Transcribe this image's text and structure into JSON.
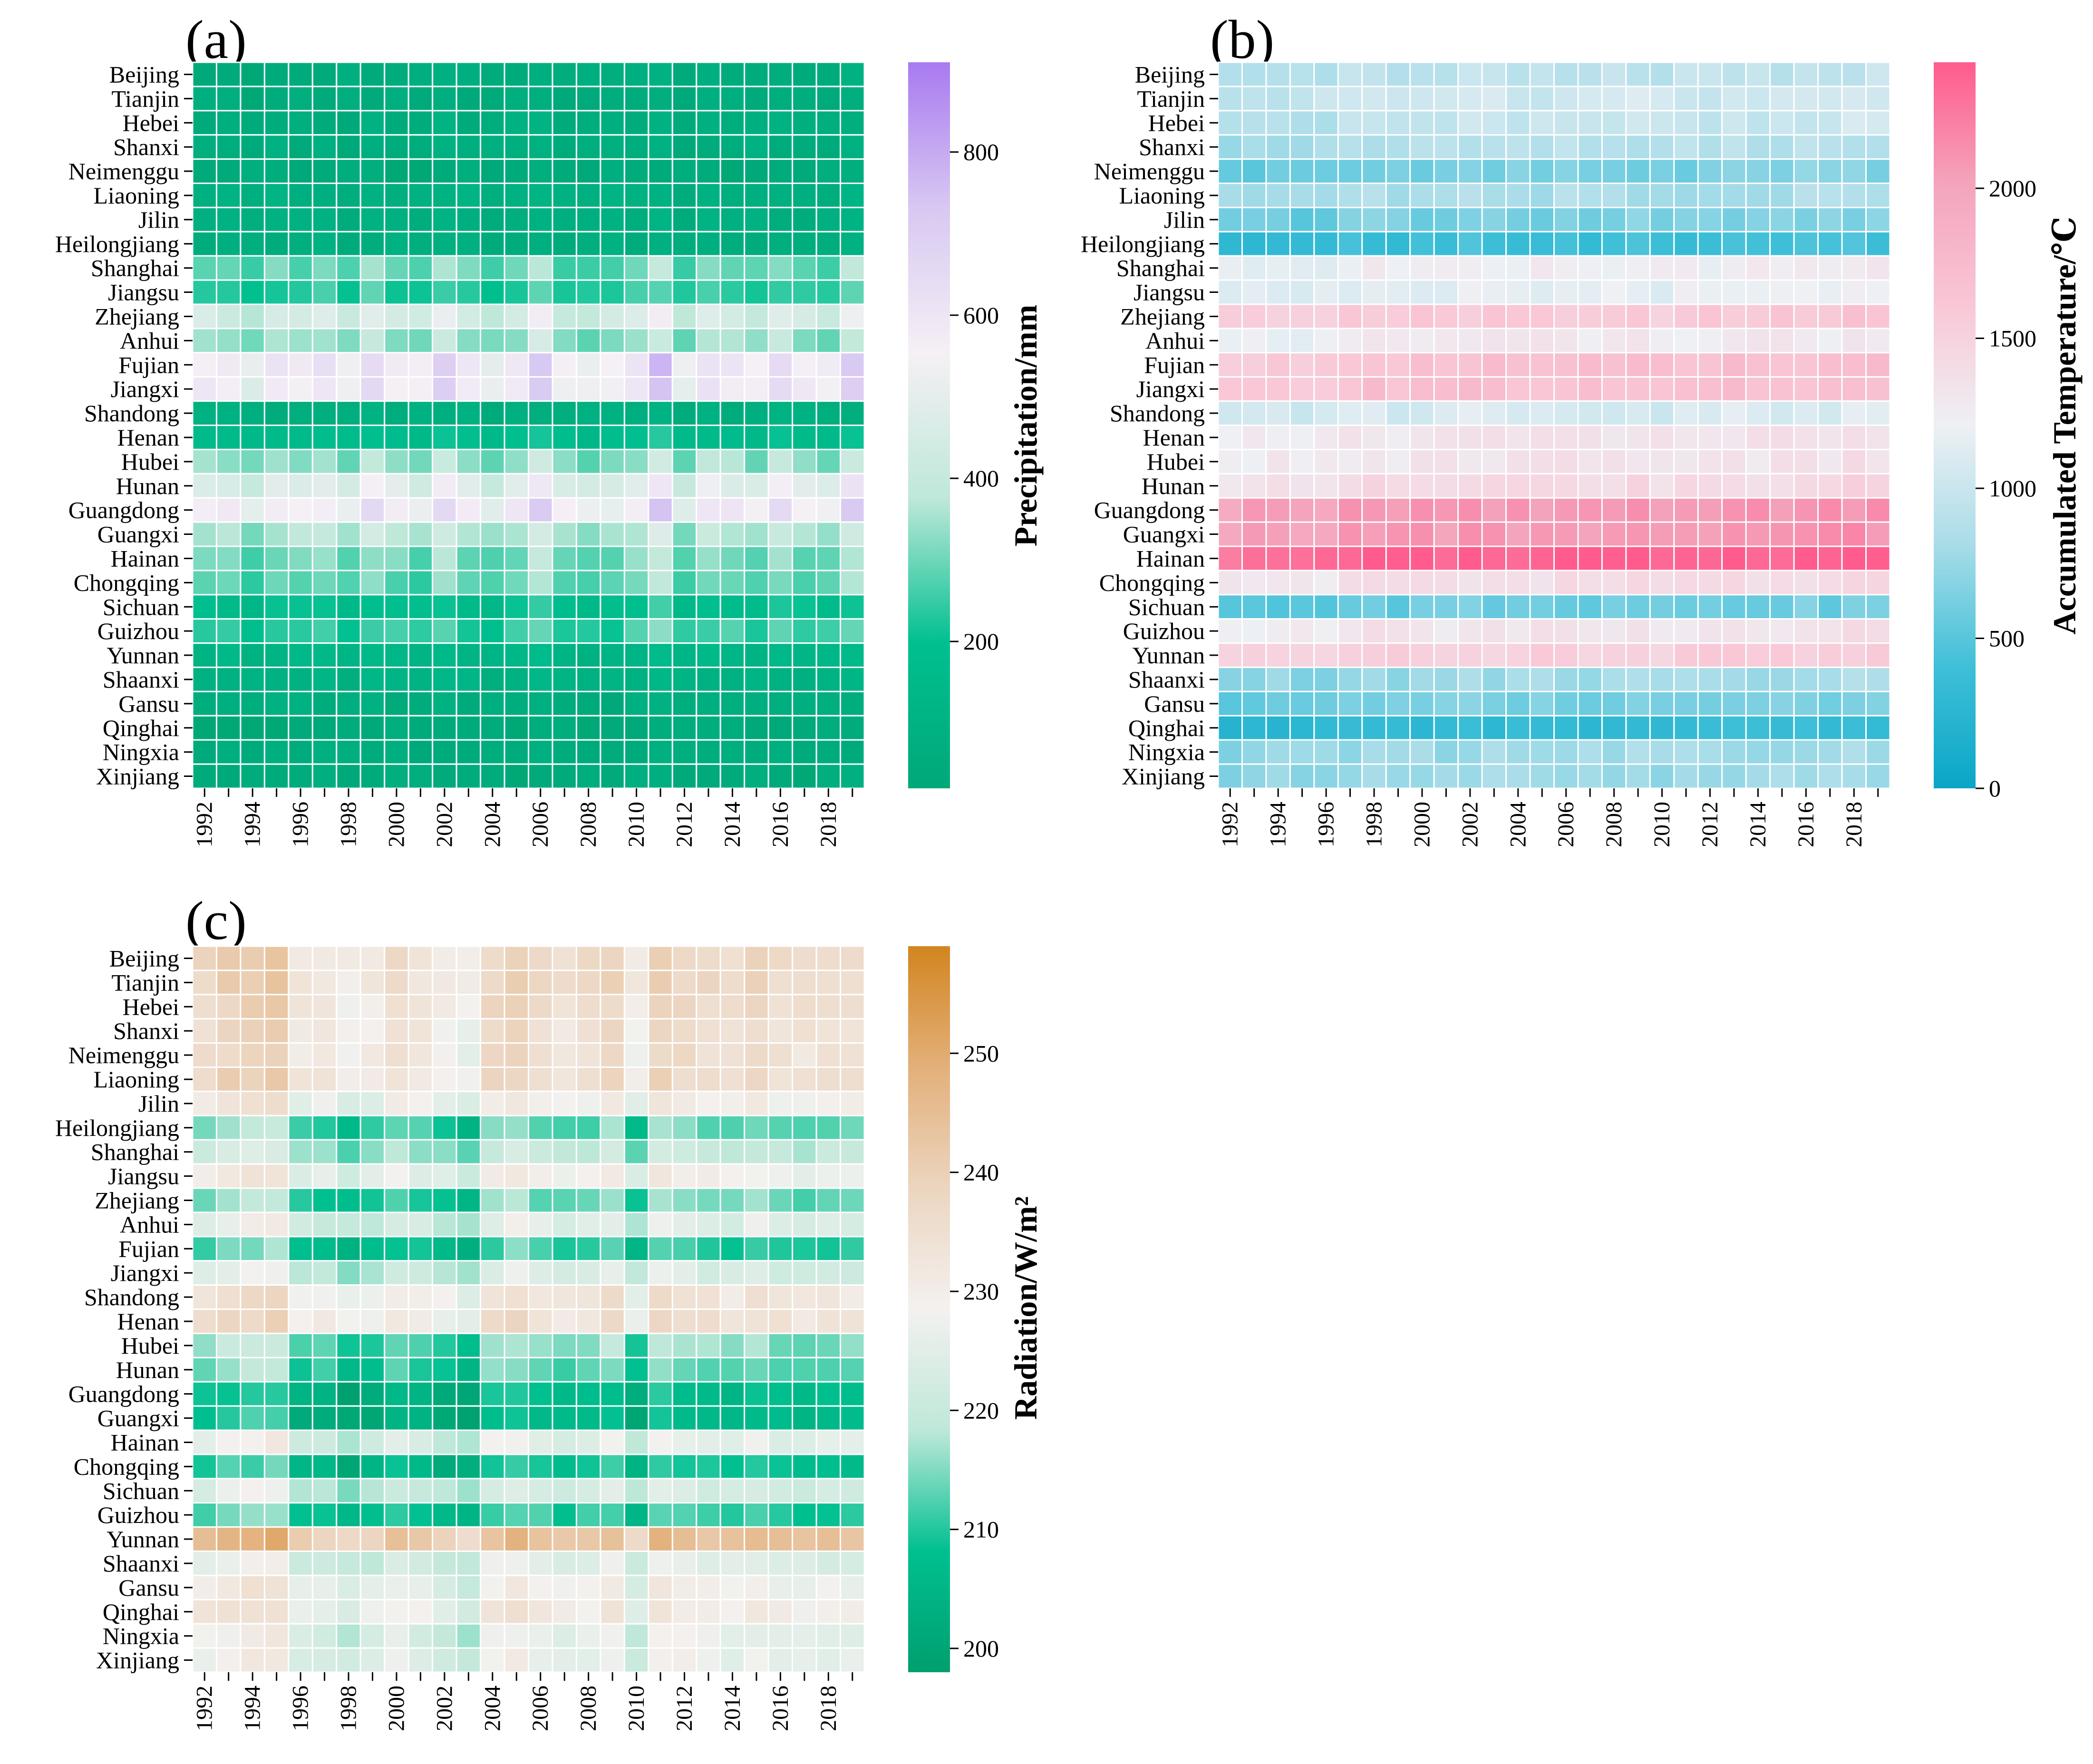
{
  "provinces": [
    "Beijing",
    "Tianjin",
    "Hebei",
    "Shanxi",
    "Neimenggu",
    "Liaoning",
    "Jilin",
    "Heilongjiang",
    "Shanghai",
    "Jiangsu",
    "Zhejiang",
    "Anhui",
    "Fujian",
    "Jiangxi",
    "Shandong",
    "Henan",
    "Hubei",
    "Hunan",
    "Guangdong",
    "Guangxi",
    "Hainan",
    "Chongqing",
    "Sichuan",
    "Guizhou",
    "Yunnan",
    "Shaanxi",
    "Gansu",
    "Qinghai",
    "Ningxia",
    "Xinjiang"
  ],
  "years": [
    1992,
    1993,
    1994,
    1995,
    1996,
    1997,
    1998,
    1999,
    2000,
    2001,
    2002,
    2003,
    2004,
    2005,
    2006,
    2007,
    2008,
    2009,
    2010,
    2011,
    2012,
    2013,
    2014,
    2015,
    2016,
    2017,
    2018,
    2019
  ],
  "chart_data": [
    {
      "type": "heatmap",
      "panel_label": "(a)",
      "colorbar_label": "Precipitation/mm",
      "colorbar_ticks": [
        200,
        400,
        600,
        800
      ],
      "vmin": 20,
      "vmax": 910,
      "colors": [
        "#00a878",
        "#00c090",
        "#bfe8d9",
        "#f5f0f5",
        "#d8c8f2",
        "#a87af0"
      ],
      "province_base": [
        55,
        50,
        60,
        62,
        45,
        85,
        72,
        70,
        290,
        230,
        440,
        330,
        580,
        570,
        70,
        160,
        330,
        470,
        560,
        360,
        300,
        280,
        180,
        240,
        120,
        100,
        60,
        40,
        50,
        45
      ],
      "year_amp": [
        1.0,
        1.0,
        0.85,
        1.05,
        1.0,
        1.05,
        0.9,
        1.15,
        1.0,
        0.95,
        1.2,
        1.0,
        0.9,
        1.05,
        1.3,
        0.95,
        0.9,
        0.95,
        1.05,
        1.3,
        0.9,
        1.1,
        1.05,
        0.95,
        1.15,
        1.0,
        0.95,
        1.25
      ],
      "year_shift": [
        0,
        0,
        0,
        0,
        0,
        0,
        0,
        0,
        0,
        0,
        0,
        0,
        0,
        0,
        0,
        0,
        0,
        0,
        0,
        0,
        0,
        0,
        0,
        0,
        0,
        0,
        0,
        0
      ]
    },
    {
      "type": "heatmap",
      "panel_label": "(b)",
      "colorbar_label": "Accumulated Temperature/℃",
      "colorbar_ticks": [
        0,
        500,
        1000,
        1500,
        2000
      ],
      "vmin": 0,
      "vmax": 2420,
      "colors": [
        "#0aa6c6",
        "#3fbfd8",
        "#a7dce8",
        "#eef0f4",
        "#f9c7d6",
        "#f4a4bc",
        "#ff5b8c"
      ],
      "province_base": [
        900,
        1000,
        950,
        850,
        600,
        800,
        600,
        350,
        1200,
        1150,
        1550,
        1250,
        1650,
        1650,
        1050,
        1300,
        1300,
        1400,
        2050,
        2050,
        2350,
        1350,
        550,
        1300,
        1500,
        750,
        600,
        300,
        750,
        750
      ],
      "year_amp": [
        1.0,
        1.0,
        1.0,
        1.0,
        1.0,
        1.0,
        1.0,
        1.0,
        1.0,
        1.0,
        1.0,
        1.0,
        1.0,
        1.0,
        1.0,
        1.0,
        1.0,
        1.0,
        1.0,
        1.0,
        1.0,
        1.0,
        1.0,
        1.0,
        1.0,
        1.0,
        1.0,
        1.0
      ],
      "year_shift": [
        -60,
        -40,
        -30,
        -50,
        -40,
        20,
        40,
        10,
        30,
        10,
        50,
        30,
        20,
        40,
        60,
        30,
        40,
        50,
        10,
        30,
        40,
        60,
        30,
        50,
        60,
        40,
        80,
        60
      ]
    },
    {
      "type": "heatmap",
      "panel_label": "(c)",
      "colorbar_label": "Radiation/W/m²",
      "colorbar_ticks": [
        200,
        210,
        220,
        230,
        240,
        250
      ],
      "vmin": 198,
      "vmax": 259,
      "colors": [
        "#009f6f",
        "#00c090",
        "#bfe8d9",
        "#f3f1ef",
        "#ecd5c0",
        "#e3b07a",
        "#d28520"
      ],
      "province_base": [
        236,
        236,
        235,
        234,
        234,
        235,
        229,
        213,
        219,
        228,
        213,
        224,
        210,
        222,
        232,
        233,
        215,
        213,
        206,
        206,
        225,
        208,
        222,
        210,
        243,
        224,
        228,
        230,
        225,
        226
      ],
      "year_amp": [
        1.0,
        1.0,
        1.0,
        1.0,
        1.0,
        1.0,
        1.0,
        1.0,
        1.0,
        1.0,
        1.0,
        1.0,
        1.0,
        1.0,
        1.0,
        1.0,
        1.0,
        1.0,
        1.0,
        1.0,
        1.0,
        1.0,
        1.0,
        1.0,
        1.0,
        1.0,
        1.0,
        1.0
      ],
      "year_shift": [
        2,
        4,
        5,
        6,
        -3,
        -3,
        -6,
        -4,
        0,
        -2,
        -5,
        -7,
        2,
        4,
        1,
        -1,
        0,
        3,
        -5,
        4,
        2,
        1,
        0,
        2,
        0,
        -1,
        0,
        0
      ]
    }
  ]
}
